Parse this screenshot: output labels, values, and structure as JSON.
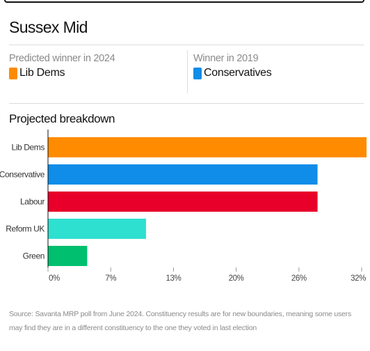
{
  "constituency": "Sussex Mid",
  "predicted": {
    "label": "Predicted winner in 2024",
    "party": "Lib Dems",
    "color": "#ff8c00"
  },
  "previous": {
    "label": "Winner in 2019",
    "party": "Conservatives",
    "color": "#0f8de8"
  },
  "chart_title": "Projected breakdown",
  "chart_data": {
    "type": "bar",
    "orientation": "horizontal",
    "title": "Projected breakdown",
    "categories": [
      "Lib Dems",
      "Conservative",
      "Labour",
      "Reform UK",
      "Green"
    ],
    "values": [
      32.5,
      27.5,
      27.5,
      10,
      4
    ],
    "colors": [
      "#ff8c00",
      "#0f8de8",
      "#e8002b",
      "#2ee0d0",
      "#00bf6f"
    ],
    "xlim": [
      0,
      32
    ],
    "ticks": [
      "0%",
      "7%",
      "13%",
      "20%",
      "26%",
      "32%"
    ],
    "grid": false
  },
  "source": "Source: Savanta MRP poll from June 2024. Constituency results are for new boundaries, meaning some users may find they are in a different constituency to the one they voted in last election"
}
